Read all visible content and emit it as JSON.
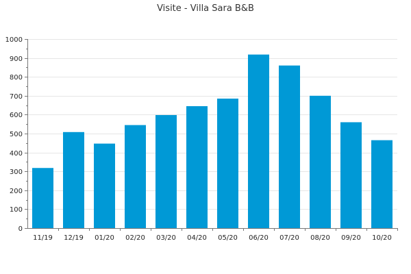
{
  "chart_data": {
    "type": "bar",
    "title": "Visite - Villa Sara B&B",
    "xlabel": "",
    "ylabel": "",
    "categories": [
      "11/19",
      "12/19",
      "01/20",
      "02/20",
      "03/20",
      "04/20",
      "05/20",
      "06/20",
      "07/20",
      "08/20",
      "09/20",
      "10/20"
    ],
    "values": [
      318,
      508,
      447,
      545,
      598,
      645,
      685,
      918,
      860,
      700,
      560,
      465
    ],
    "ylim": [
      0,
      1000
    ],
    "yticks": [
      0,
      100,
      200,
      300,
      400,
      500,
      600,
      700,
      800,
      900,
      1000
    ],
    "grid": true,
    "legend": "none",
    "colors": {
      "bar": "#0099d6",
      "grid": "#e6e6e6",
      "axis": "#777777",
      "text": "#222222"
    }
  }
}
